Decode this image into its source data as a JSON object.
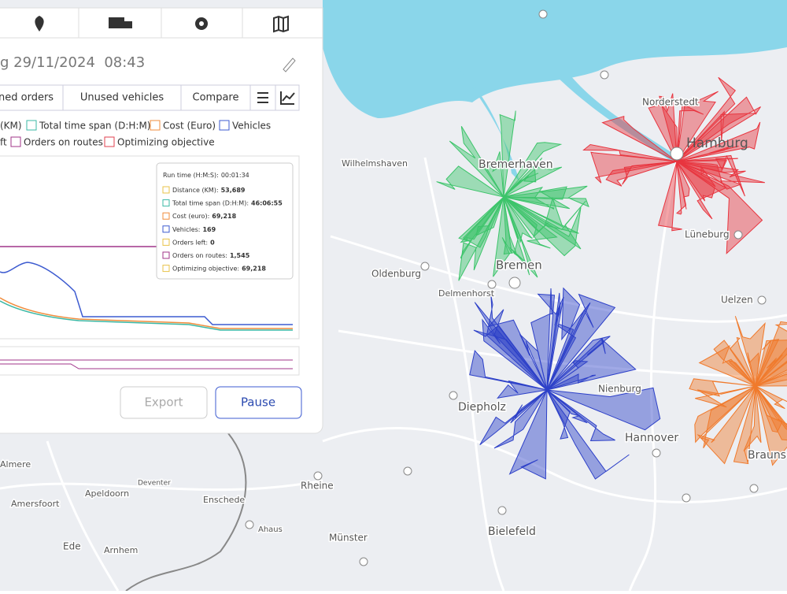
{
  "panel": {
    "title": "g 29/11/2024  08:43",
    "tabs": [
      "ned orders",
      "Unused vehicles",
      "Compare"
    ],
    "legend": [
      "(KM)",
      "Total time span (D:H:M)",
      "Cost (Euro)",
      "Vehicles",
      "ft",
      "Orders on routes",
      "Optimizing objective"
    ],
    "tooltip": {
      "run_time": {
        "label": "Run time (H:M:S):",
        "value": "00:01:34"
      },
      "items": [
        {
          "label": "Distance (KM):",
          "value": "53,689"
        },
        {
          "label": "Total time span (D:H:M):",
          "value": "46:06:55"
        },
        {
          "label": "Cost (euro):",
          "value": "69,218"
        },
        {
          "label": "Vehicles:",
          "value": "169"
        },
        {
          "label": "Orders left:",
          "value": "0"
        },
        {
          "label": "Orders on routes:",
          "value": "1,545"
        },
        {
          "label": "Optimizing objective:",
          "value": "69,218"
        }
      ]
    },
    "buttons": [
      "Export",
      "Pause"
    ]
  },
  "map_labels": [
    "Hamburg",
    "Norderstedt",
    "Bremerhaven",
    "Wilhelmshaven",
    "Bremen",
    "Oldenburg",
    "Delmenhorst",
    "Lüneburg",
    "Uelzen",
    "Diepholz",
    "Nienburg",
    "Hannover",
    "Brauns",
    "Almere",
    "Apeldoorn",
    "Deventer",
    "Amersfoort",
    "Enschede",
    "Rheine",
    "Ahaus",
    "Ede",
    "Arnhem",
    "Münster",
    "Bielefeld"
  ]
}
